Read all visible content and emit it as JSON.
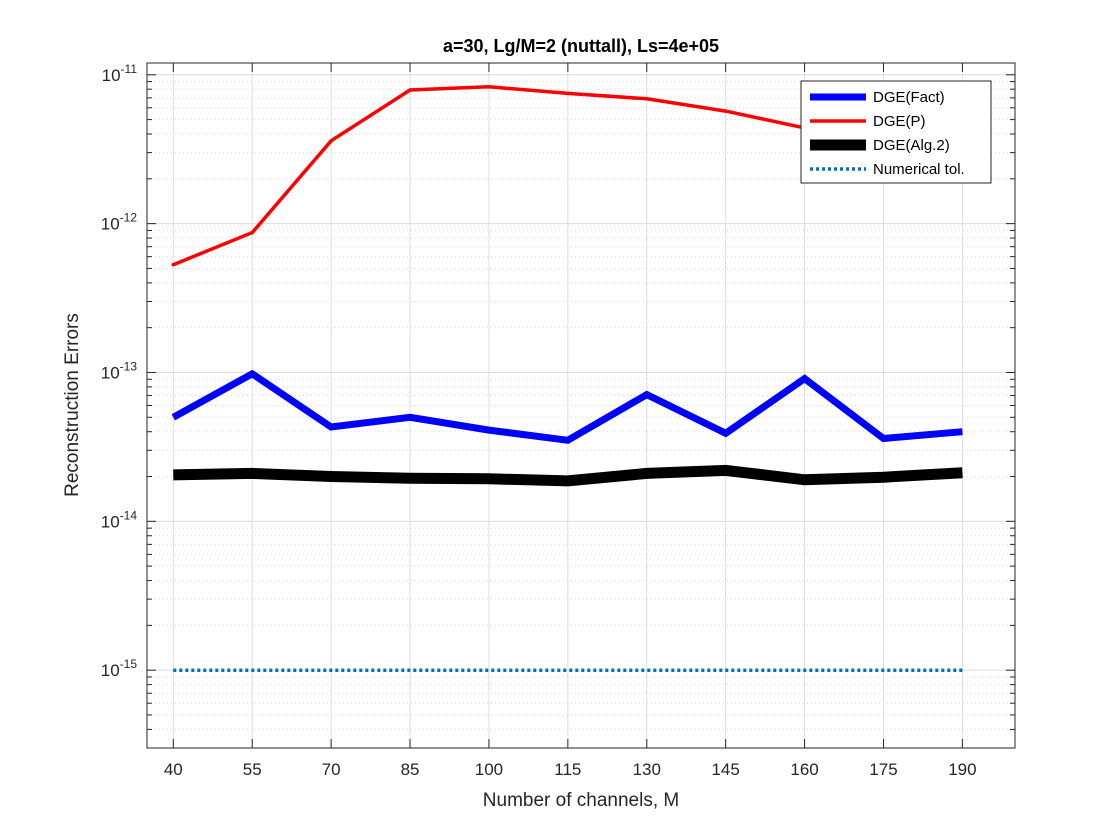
{
  "chart_data": {
    "type": "line",
    "title": "a=30, Lg/M=2 (nuttall), Ls=4e+05",
    "xlabel": "Number of channels, M",
    "ylabel": "Reconstruction Errors",
    "x": [
      40,
      55,
      70,
      85,
      100,
      115,
      130,
      145,
      160,
      175,
      190
    ],
    "x_ticks": [
      "40",
      "55",
      "70",
      "85",
      "100",
      "115",
      "130",
      "145",
      "160",
      "175",
      "190"
    ],
    "xlim": [
      35,
      200
    ],
    "yscale": "log",
    "ylim": [
      3e-16,
      1.2e-11
    ],
    "y_ticks": [
      {
        "value": 1e-15,
        "base": "10",
        "exp": "-15"
      },
      {
        "value": 1e-14,
        "base": "10",
        "exp": "-14"
      },
      {
        "value": 1e-13,
        "base": "10",
        "exp": "-13"
      },
      {
        "value": 1e-12,
        "base": "10",
        "exp": "-12"
      },
      {
        "value": 1e-11,
        "base": "10",
        "exp": "-11"
      }
    ],
    "grid": true,
    "minor_grid": true,
    "legend_position": "top-right",
    "series": [
      {
        "name": "DGE(Fact)",
        "color": "#0000ff",
        "style": "solid",
        "width": "thick",
        "values": [
          5e-14,
          9.8e-14,
          4.3e-14,
          5e-14,
          4.1e-14,
          3.5e-14,
          7.1e-14,
          3.9e-14,
          9.1e-14,
          3.6e-14,
          4e-14
        ]
      },
      {
        "name": "DGE(P)",
        "color": "#ff0000",
        "style": "solid",
        "width": "medium",
        "values": [
          5.3e-13,
          8.7e-13,
          3.6e-12,
          7.9e-12,
          8.3e-12,
          7.5e-12,
          6.9e-12,
          5.7e-12,
          4.4e-12,
          3.9e-12,
          3.7e-12
        ]
      },
      {
        "name": "DGE(Alg.2)",
        "color": "#000000",
        "style": "solid",
        "width": "extra-thick",
        "values": [
          2.05e-14,
          2.1e-14,
          2e-14,
          1.95e-14,
          1.93e-14,
          1.87e-14,
          2.1e-14,
          2.2e-14,
          1.9e-14,
          1.98e-14,
          2.12e-14
        ]
      },
      {
        "name": "Numerical tol.",
        "color": "#0072bd",
        "style": "dotted",
        "width": "medium",
        "values": [
          1e-15,
          1e-15,
          1e-15,
          1e-15,
          1e-15,
          1e-15,
          1e-15,
          1e-15,
          1e-15,
          1e-15,
          1e-15
        ]
      }
    ]
  }
}
